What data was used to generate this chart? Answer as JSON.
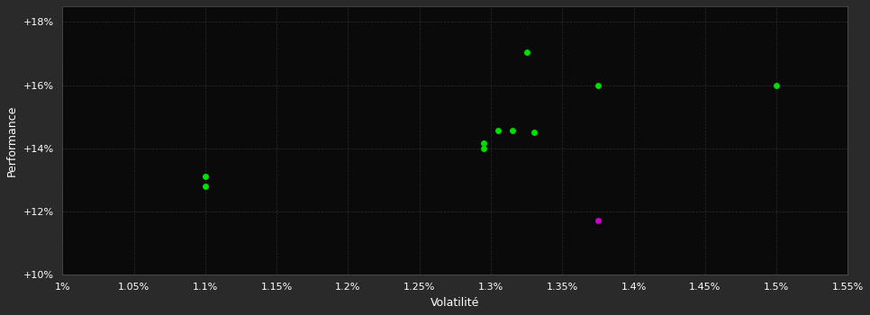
{
  "background_color": "#2a2a2a",
  "plot_bg_color": "#0a0a0a",
  "grid_color": "#3a3a3a",
  "text_color": "#ffffff",
  "xlabel": "Volatilité",
  "ylabel": "Performance",
  "xlim": [
    0.01,
    0.0155
  ],
  "ylim": [
    0.1,
    0.185
  ],
  "xticks": [
    0.01,
    0.0105,
    0.011,
    0.0115,
    0.012,
    0.0125,
    0.013,
    0.0135,
    0.014,
    0.0145,
    0.015,
    0.0155
  ],
  "yticks": [
    0.1,
    0.12,
    0.14,
    0.16,
    0.18
  ],
  "green_x": [
    0.011,
    0.011,
    0.01295,
    0.01305,
    0.01315,
    0.0133,
    0.01295,
    0.01325,
    0.01375,
    0.015
  ],
  "green_y": [
    0.131,
    0.128,
    0.1415,
    0.1455,
    0.1455,
    0.145,
    0.14,
    0.1705,
    0.16,
    0.16
  ],
  "magenta_x": [
    0.01375
  ],
  "magenta_y": [
    0.117
  ],
  "point_size": 25,
  "green_color": "#00dd00",
  "magenta_color": "#cc00cc",
  "font_size_label": 9,
  "font_size_tick": 8
}
